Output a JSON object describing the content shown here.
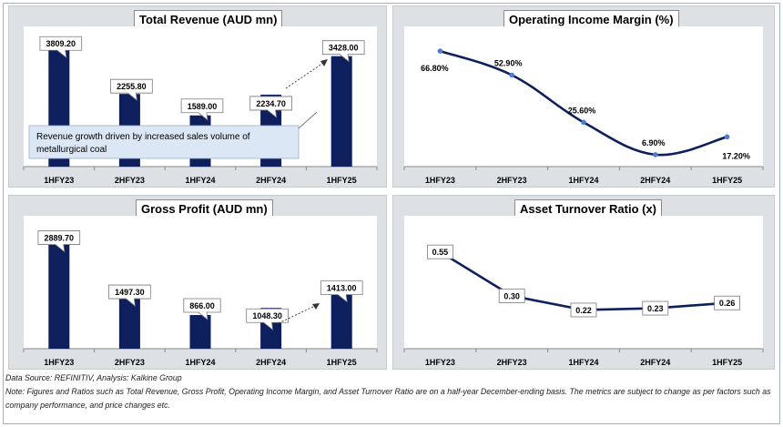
{
  "charts": [
    {
      "title": "Total Revenue (AUD mn)",
      "chart_data": {
        "type": "bar",
        "title": "Total Revenue (AUD mn)",
        "categories": [
          "1HFY23",
          "2HFY23",
          "1HFY24",
          "2HFY24",
          "1HFY25"
        ],
        "values": [
          3809.2,
          2255.8,
          1589.0,
          2234.7,
          3428.0
        ],
        "data_labels": [
          "3809.20",
          "2255.80",
          "1589.00",
          "2234.70",
          "3428.00"
        ],
        "ylim": [
          0,
          3900
        ],
        "annotation": "Revenue growth driven by increased sales volume of metallurgical coal",
        "bar_color": "#0d1f5c"
      }
    },
    {
      "title": "Operating Income Margin (%)",
      "chart_data": {
        "type": "line",
        "title": "Operating Income Margin (%)",
        "categories": [
          "1HFY23",
          "2HFY23",
          "1HFY24",
          "2HFY24",
          "1HFY25"
        ],
        "values": [
          66.8,
          52.9,
          25.6,
          6.9,
          17.2
        ],
        "data_labels": [
          "66.80%",
          "52.90%",
          "25.60%",
          "6.90%",
          "17.20%"
        ],
        "ylim": [
          0,
          80
        ],
        "line_color": "#0d1f5c",
        "marker_color": "#4a7fd0"
      }
    },
    {
      "title": "Gross Profit (AUD mn)",
      "chart_data": {
        "type": "bar",
        "title": "Gross Profit (AUD mn)",
        "categories": [
          "1HFY23",
          "2HFY23",
          "1HFY24",
          "2HFY24",
          "1HFY25"
        ],
        "values": [
          2889.7,
          1497.3,
          866.0,
          1048.3,
          1413.0
        ],
        "data_labels": [
          "2889.70",
          "1497.30",
          "866.00",
          "1048.30",
          "1413.00"
        ],
        "ylim": [
          0,
          2950
        ],
        "bar_color": "#0d1f5c"
      }
    },
    {
      "title": "Asset Turnover Ratio (x)",
      "chart_data": {
        "type": "line",
        "title": "Asset Turnover Ratio (x)",
        "categories": [
          "1HFY23",
          "2HFY23",
          "1HFY24",
          "2HFY24",
          "1HFY25"
        ],
        "values": [
          0.55,
          0.3,
          0.22,
          0.23,
          0.26
        ],
        "data_labels": [
          "0.55",
          "0.30",
          "0.22",
          "0.23",
          "0.26"
        ],
        "ylim": [
          0,
          0.6
        ],
        "line_color": "#0d1f5c"
      }
    }
  ],
  "footer": {
    "source": "Data Source: REFINITIV, Analysis: Kalkine Group",
    "note": "Note: Figures and Ratios such as Total Revenue, Gross Profit, Operating Income Margin, and Asset Turnover Ratio are on a half-year December-ending basis. The metrics are subject to change as per factors such as company performance, and price changes etc."
  }
}
